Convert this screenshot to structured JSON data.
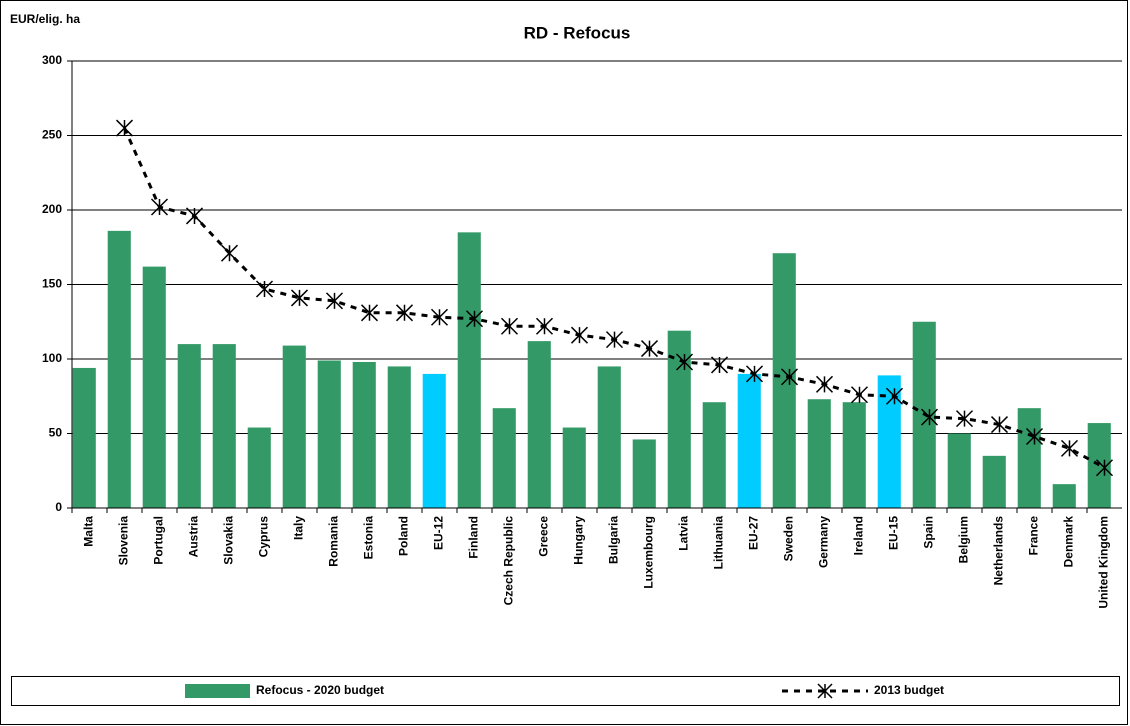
{
  "chart_data": {
    "type": "bar_line",
    "title": "RD - Refocus",
    "y_label": "EUR/elig. ha",
    "categories": [
      "Malta",
      "Slovenia",
      "Portugal",
      "Austria",
      "Slovakia",
      "Cyprus",
      "Italy",
      "Romania",
      "Estonia",
      "Poland",
      "EU-12",
      "Finland",
      "Czech Republic",
      "Greece",
      "Hungary",
      "Bulgaria",
      "Luxembourg",
      "Latvia",
      "Lithuania",
      "EU-27",
      "Sweden",
      "Germany",
      "Ireland",
      "EU-15",
      "Spain",
      "Belgium",
      "Netherlands",
      "France",
      "Denmark",
      "United Kingdom"
    ],
    "series": [
      {
        "name": "Refocus - 2020 budget",
        "type": "bar",
        "color": "#339966",
        "colors": [
          "#339966",
          "#339966",
          "#339966",
          "#339966",
          "#339966",
          "#339966",
          "#339966",
          "#339966",
          "#339966",
          "#339966",
          "#00ccff",
          "#339966",
          "#339966",
          "#339966",
          "#339966",
          "#339966",
          "#339966",
          "#339966",
          "#339966",
          "#00ccff",
          "#339966",
          "#339966",
          "#339966",
          "#00ccff",
          "#339966",
          "#339966",
          "#339966",
          "#339966",
          "#339966",
          "#339966"
        ],
        "values": [
          94,
          186,
          162,
          110,
          110,
          54,
          109,
          99,
          98,
          95,
          90,
          185,
          67,
          112,
          54,
          95,
          46,
          119,
          71,
          90,
          171,
          73,
          71,
          89,
          125,
          50,
          35,
          67,
          16,
          57
        ]
      },
      {
        "name": "2013 budget",
        "type": "line",
        "color": "#000000",
        "values": [
          null,
          255,
          202,
          196,
          171,
          147,
          141,
          139,
          131,
          131,
          128,
          127,
          122,
          122,
          116,
          113,
          107,
          98,
          96,
          90,
          88,
          83,
          76,
          75,
          61,
          60,
          56,
          48,
          40,
          27
        ]
      }
    ],
    "ylim": [
      0,
      300
    ],
    "yticks": [
      0,
      50,
      100,
      150,
      200,
      250,
      300
    ],
    "grid": true
  }
}
